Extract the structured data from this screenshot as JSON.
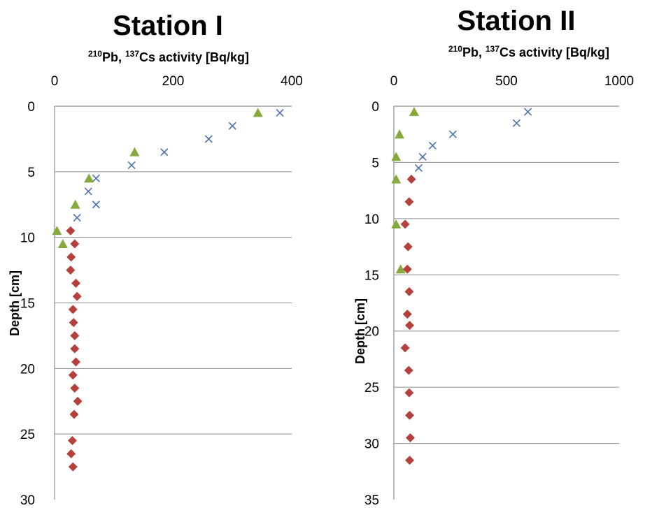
{
  "chart_data": [
    {
      "type": "scatter",
      "title": "Station I",
      "xlabel_main": "Pb, ",
      "xlabel_sup1": "210",
      "xlabel_sup2": "137",
      "xlabel_tail": "Cs activity [Bq/kg]",
      "ylabel": "Depth [cm]",
      "xlim": [
        0,
        400
      ],
      "ylim": [
        0,
        30
      ],
      "xticks": [
        0,
        200,
        400
      ],
      "yticks": [
        0,
        5,
        10,
        15,
        20,
        25,
        30
      ],
      "y_inverted": true,
      "x_axis_position": "top",
      "grid": "horizontal",
      "series": [
        {
          "marker": "cross",
          "color": "#4a72b0",
          "x": [
            380,
            300,
            260,
            185,
            130,
            70,
            57,
            70,
            38
          ],
          "y": [
            0.5,
            1.5,
            2.5,
            3.5,
            4.5,
            5.5,
            6.5,
            7.5,
            8.5
          ]
        },
        {
          "marker": "triangle",
          "color": "#86a93c",
          "x": [
            343,
            135,
            58,
            35,
            4,
            14
          ],
          "y": [
            0.5,
            3.5,
            5.5,
            7.5,
            9.5,
            10.5
          ]
        },
        {
          "marker": "diamond",
          "color": "#b5413d",
          "x": [
            27,
            34,
            28,
            27,
            36,
            38,
            31,
            32,
            34,
            34,
            36,
            31,
            34,
            39,
            33,
            30,
            28,
            31
          ],
          "y": [
            9.5,
            10.5,
            11.5,
            12.5,
            13.5,
            14.5,
            15.5,
            16.5,
            17.5,
            18.5,
            19.5,
            20.5,
            21.5,
            22.5,
            23.5,
            25.5,
            26.5,
            27.5
          ]
        }
      ]
    },
    {
      "type": "scatter",
      "title": "Station II",
      "xlabel_main": "Pb, ",
      "xlabel_sup1": "210",
      "xlabel_sup2": "137",
      "xlabel_tail": "Cs activity [Bq/kg]",
      "ylabel": "Depth [cm]",
      "xlim": [
        0,
        1000
      ],
      "ylim": [
        0,
        35
      ],
      "xticks": [
        0,
        500,
        1000
      ],
      "yticks": [
        0,
        5,
        10,
        15,
        20,
        25,
        30,
        35
      ],
      "y_inverted": true,
      "x_axis_position": "top",
      "grid": "horizontal",
      "series": [
        {
          "marker": "cross",
          "color": "#4a72b0",
          "x": [
            595,
            545,
            262,
            172,
            128,
            110
          ],
          "y": [
            0.5,
            1.5,
            2.5,
            3.5,
            4.5,
            5.5
          ]
        },
        {
          "marker": "triangle",
          "color": "#86a93c",
          "x": [
            90,
            25,
            10,
            10,
            10,
            30
          ],
          "y": [
            0.5,
            2.5,
            4.5,
            6.5,
            10.5,
            14.5
          ]
        },
        {
          "marker": "diamond",
          "color": "#b5413d",
          "x": [
            78,
            68,
            50,
            63,
            60,
            68,
            60,
            70,
            50,
            66,
            68,
            70,
            73,
            70
          ],
          "y": [
            6.5,
            8.5,
            10.5,
            12.5,
            14.5,
            16.5,
            18.5,
            19.5,
            21.5,
            23.5,
            25.5,
            27.5,
            29.5,
            31.5
          ]
        }
      ]
    }
  ]
}
